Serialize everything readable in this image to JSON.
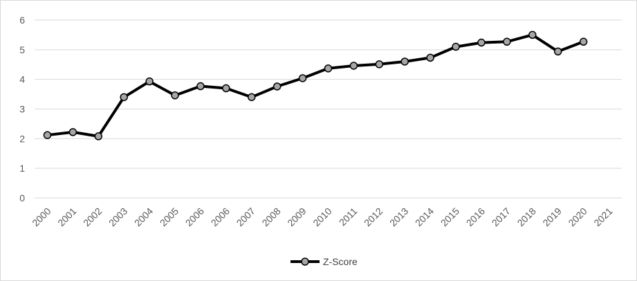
{
  "chart_data": {
    "type": "line",
    "title": "",
    "xlabel": "",
    "ylabel": "",
    "categories": [
      "2000",
      "2001",
      "2002",
      "2003",
      "2004",
      "2005",
      "2006",
      "2006",
      "2007",
      "2008",
      "2009",
      "2010",
      "2011",
      "2012",
      "2013",
      "2014",
      "2015",
      "2016",
      "2017",
      "2018",
      "2019",
      "2020",
      "2021"
    ],
    "series": [
      {
        "name": "Z-Score",
        "values": [
          2.12,
          2.22,
          2.08,
          3.4,
          3.93,
          3.46,
          3.77,
          3.7,
          3.4,
          3.76,
          4.04,
          4.37,
          4.46,
          4.51,
          4.6,
          4.73,
          5.1,
          5.24,
          5.27,
          5.5,
          4.94,
          5.27,
          null
        ]
      }
    ],
    "ylim": [
      0,
      6
    ],
    "yticks": [
      "0",
      "1",
      "2",
      "3",
      "4",
      "5",
      "6"
    ],
    "grid": true,
    "legend": "bottom",
    "colors": {
      "line": "#000000",
      "marker_fill": "#a6a6a6",
      "grid": "#d9d9d9",
      "tick_text": "#595959"
    }
  }
}
